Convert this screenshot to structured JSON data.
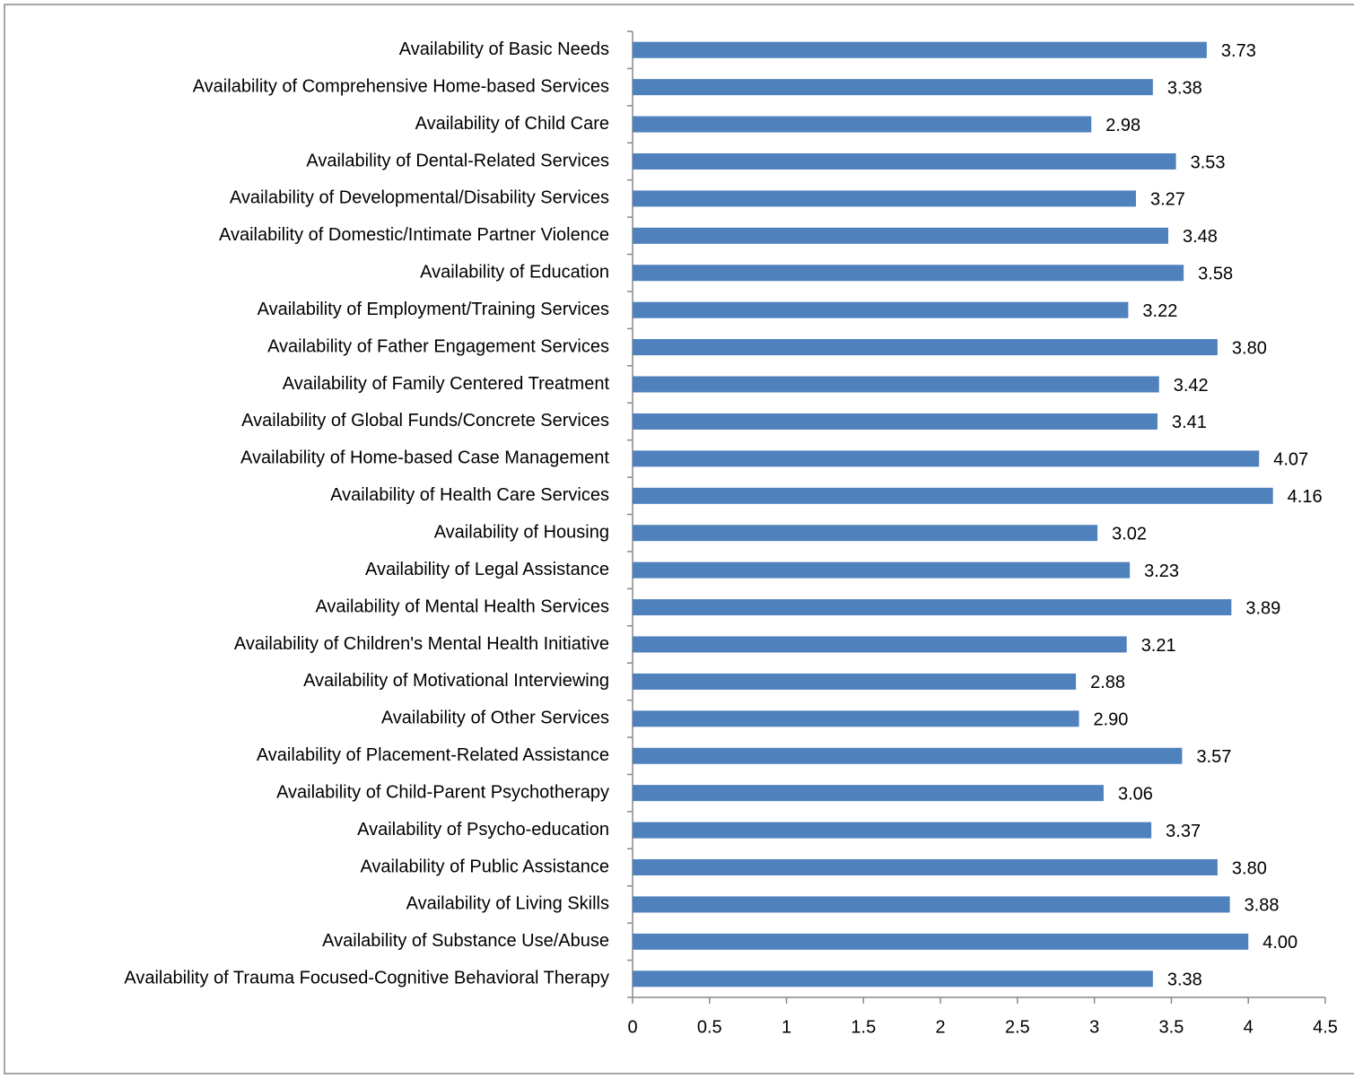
{
  "chart_data": {
    "type": "bar",
    "orientation": "horizontal",
    "categories": [
      "Availability of Basic Needs",
      "Availability of Comprehensive Home-based Services",
      "Availability of Child Care",
      "Availability of Dental-Related Services",
      "Availability of Developmental/Disability Services",
      "Availability of Domestic/Intimate Partner Violence",
      "Availability of Education",
      "Availability of Employment/Training Services",
      "Availability of Father Engagement Services",
      "Availability of Family Centered Treatment",
      "Availability of Global Funds/Concrete Services",
      "Availability of Home-based Case Management",
      "Availability of Health Care Services",
      "Availability of Housing",
      "Availability of Legal Assistance",
      "Availability of Mental Health Services",
      "Availability of Children's Mental Health Initiative",
      "Availability of Motivational Interviewing",
      "Availability of Other Services",
      "Availability of Placement-Related Assistance",
      "Availability of Child-Parent Psychotherapy",
      "Availability of Psycho-education",
      "Availability of Public Assistance",
      "Availability of Living Skills",
      "Availability of Substance Use/Abuse",
      "Availability of Trauma Focused-Cognitive Behavioral Therapy"
    ],
    "values": [
      3.73,
      3.38,
      2.98,
      3.53,
      3.27,
      3.48,
      3.58,
      3.22,
      3.8,
      3.42,
      3.41,
      4.07,
      4.16,
      3.02,
      3.23,
      3.89,
      3.21,
      2.88,
      2.9,
      3.57,
      3.06,
      3.37,
      3.8,
      3.88,
      4.0,
      3.38
    ],
    "value_labels": [
      "3.73",
      "3.38",
      "2.98",
      "3.53",
      "3.27",
      "3.48",
      "3.58",
      "3.22",
      "3.80",
      "3.42",
      "3.41",
      "4.07",
      "4.16",
      "3.02",
      "3.23",
      "3.89",
      "3.21",
      "2.88",
      "2.90",
      "3.57",
      "3.06",
      "3.37",
      "3.80",
      "3.88",
      "4.00",
      "3.38"
    ],
    "color": "#4f81bd",
    "xlim": [
      0,
      4.5
    ],
    "xticks": [
      0,
      0.5,
      1,
      1.5,
      2,
      2.5,
      3,
      3.5,
      4,
      4.5
    ],
    "grid": false
  }
}
